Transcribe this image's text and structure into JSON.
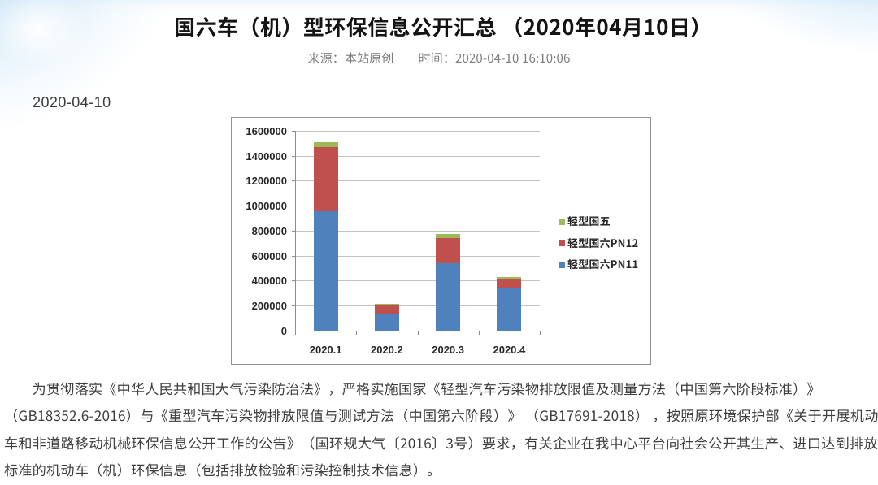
{
  "article": {
    "title": "国六车（机）型环保信息公开汇总 （2020年04月10日）",
    "meta": {
      "source_label": "来源：",
      "source": "本站原创",
      "time_label": "时间：",
      "time": "2020-04-10 16:10:06"
    },
    "date_stamp": "2020-04-10",
    "paragraph_lines": [
      "　　为贯彻落实《中华人民共和国大气污染防治法》，严格实施国家《轻型汽车污染物排放限值及测量方法（中国第六阶段标准）》",
      "（GB18352.6-2016）与《重型汽车污染物排放限值与测试方法（中国第六阶段）》 （GB17691-2018） ，按照原环境保护部《关于开展机动",
      "车和非道路移动机械环保信息公开工作的公告》（国环规大气〔2016〕3号）要求，有关企业在我中心平台向社会公开其生产、进口达到排放",
      "标准的机动车（机）环保信息（包括排放检验和污染控制技术信息）。"
    ]
  },
  "chart_data": {
    "type": "bar",
    "stacked": true,
    "title": "",
    "xlabel": "",
    "ylabel": "",
    "categories": [
      "2020.1",
      "2020.2",
      "2020.3",
      "2020.4"
    ],
    "series": [
      {
        "name": "轻型国六PN11",
        "color": "#4F81BD",
        "values": [
          955000,
          130000,
          541000,
          340000
        ]
      },
      {
        "name": "轻型国六PN12",
        "color": "#C0504D",
        "values": [
          513000,
          77000,
          201000,
          77000
        ]
      },
      {
        "name": "轻型国五",
        "color": "#9BBB59",
        "values": [
          42000,
          9000,
          30000,
          14000
        ]
      }
    ],
    "ylim": [
      0,
      1600000
    ],
    "y_tick_step": 200000,
    "y_tick_labels": [
      "0",
      "200000",
      "400000",
      "600000",
      "800000",
      "1000000",
      "1200000",
      "1400000",
      "1600000"
    ],
    "grid": true,
    "legend_position": "right",
    "legend_order_top_to_bottom": [
      "轻型国五",
      "轻型国六PN12",
      "轻型国六PN11"
    ]
  },
  "colors": {
    "grid_line": "#c3c3c3",
    "axis_line": "#8c8c8c",
    "chart_border": "#919191",
    "title_text": "#141414",
    "meta_text": "#7d7d7d",
    "date_text": "#3c3c3c",
    "body_text": "#3f3f3f",
    "axis_label_text": "#262626",
    "sky_accent": "#d7eaf8"
  }
}
